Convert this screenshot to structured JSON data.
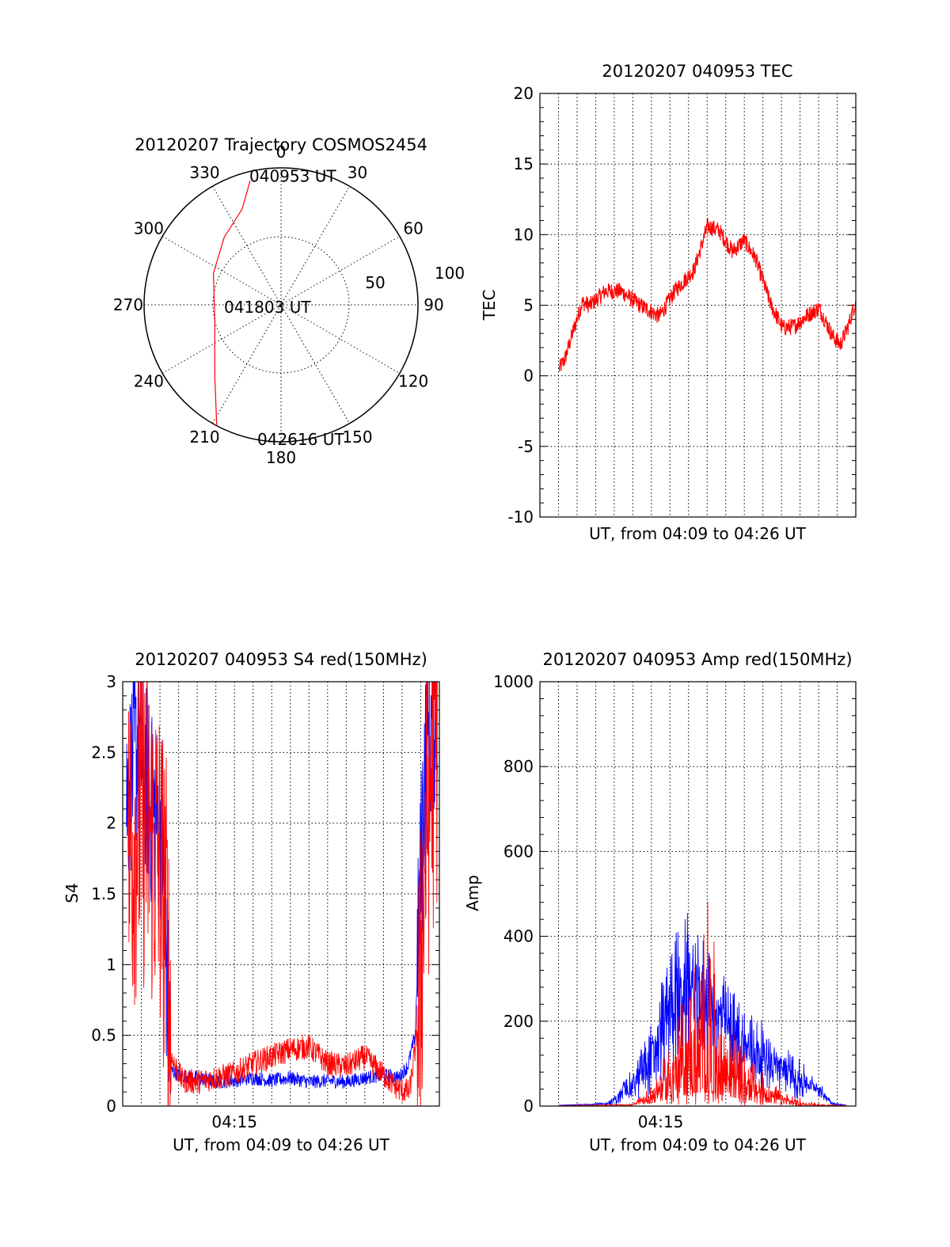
{
  "colors": {
    "red": "#ff0000",
    "blue": "#0000ff",
    "axis": "#000000"
  },
  "chart_data": [
    {
      "type": "polar",
      "title": "20120207 Trajectory COSMOS2454",
      "azimuth_labels": [
        "0",
        "30",
        "60",
        "90",
        "120",
        "150",
        "180",
        "210",
        "240",
        "270",
        "300",
        "330"
      ],
      "radial_labels": [
        "50",
        "100"
      ],
      "radial_range": [
        0,
        100
      ],
      "grid": true,
      "trajectory": {
        "color": "#ff0000",
        "points": [
          {
            "azimuth": 346,
            "zenith": 84
          },
          {
            "azimuth": 338,
            "zenith": 68
          },
          {
            "azimuth": 320,
            "zenith": 58
          },
          {
            "azimuth": 295,
            "zenith": 49
          },
          {
            "azimuth": 274,
            "zenith": 44
          },
          {
            "azimuth": 255,
            "zenith": 45
          },
          {
            "azimuth": 237,
            "zenith": 52
          },
          {
            "azimuth": 222,
            "zenith": 65
          },
          {
            "azimuth": 208,
            "zenith": 90
          }
        ],
        "labels": [
          {
            "text": "040953 UT",
            "azimuth": 0,
            "zenith": 83
          },
          {
            "text": "041803 UT",
            "azimuth": 0,
            "zenith": 0
          },
          {
            "text": "042616 UT",
            "azimuth": 180,
            "zenith": 90
          }
        ]
      }
    },
    {
      "type": "line",
      "title": "20120207 040953 TEC",
      "ylabel": "TEC",
      "xlabel": "UT, from 04:09 to 04:26 UT",
      "ylim": [
        -10,
        20
      ],
      "yticks": [
        "-10",
        "-5",
        "0",
        "5",
        "10",
        "15",
        "20"
      ],
      "xlim_minutes": [
        0,
        16.4
      ],
      "xticks": [],
      "grid": true,
      "series": [
        {
          "color": "#ff0000",
          "noise": 0.6,
          "x": [
            1.0,
            1.3,
            1.8,
            2.2,
            2.6,
            3.4,
            4.2,
            5.2,
            6.2,
            7.0,
            8.0,
            8.7,
            9.3,
            10.0,
            10.6,
            11.2,
            12.0,
            12.6,
            13.2,
            13.9,
            14.5,
            15.2,
            15.6,
            16.0,
            16.4
          ],
          "y": [
            0.5,
            1.2,
            3.5,
            5.2,
            5.0,
            6.0,
            6.0,
            5.0,
            4.2,
            6.0,
            7.5,
            10.6,
            10.3,
            8.8,
            9.6,
            8.3,
            5.0,
            3.4,
            3.5,
            4.3,
            4.8,
            2.8,
            2.2,
            3.5,
            5.3
          ]
        }
      ]
    },
    {
      "type": "line",
      "title": "20120207 040953 S4 red(150MHz)",
      "ylabel": "S4",
      "xlabel": "UT, from 04:09 to 04:26 UT",
      "ylim": [
        0,
        3
      ],
      "yticks": [
        "0",
        "0.5",
        "1",
        "1.5",
        "2",
        "2.5",
        "3"
      ],
      "xlim_minutes": [
        0,
        17.0
      ],
      "xticks": [
        {
          "label": "04:15",
          "x": 6.0
        }
      ],
      "grid": true,
      "series": [
        {
          "name": "",
          "color": "#0000ff",
          "noise": 0.05,
          "x": [
            0.2,
            0.9,
            1.5,
            2.1,
            2.4,
            2.6,
            3.0,
            4.0,
            5.0,
            6.0,
            7.0,
            8.0,
            9.0,
            10.0,
            11.0,
            12.0,
            13.0,
            14.0,
            14.8,
            15.3,
            15.7,
            16.2,
            16.9
          ],
          "y": [
            2.2,
            2.6,
            2.1,
            2.0,
            0.8,
            0.25,
            0.22,
            0.2,
            0.17,
            0.18,
            0.2,
            0.18,
            0.2,
            0.17,
            0.18,
            0.17,
            0.2,
            0.22,
            0.2,
            0.28,
            0.5,
            2.4,
            2.9
          ]
        },
        {
          "name": "",
          "color": "#ff0000",
          "noise": 0.09,
          "x": [
            0.3,
            1.0,
            1.8,
            2.3,
            2.6,
            3.2,
            4.0,
            5.0,
            6.0,
            7.0,
            8.0,
            9.0,
            10.0,
            11.0,
            12.0,
            13.0,
            14.0,
            14.8,
            15.4,
            15.9,
            16.3,
            16.9
          ],
          "y": [
            1.8,
            2.1,
            1.8,
            1.4,
            0.35,
            0.18,
            0.17,
            0.2,
            0.23,
            0.3,
            0.35,
            0.4,
            0.42,
            0.3,
            0.28,
            0.35,
            0.22,
            0.12,
            0.1,
            0.6,
            2.0,
            2.7
          ]
        }
      ]
    },
    {
      "type": "line",
      "title": "20120207 040953 Amp red(150MHz)",
      "ylabel": "Amp",
      "xlabel": "UT, from 04:09 to 04:26 UT",
      "ylim": [
        0,
        1000
      ],
      "yticks": [
        "0",
        "200",
        "400",
        "600",
        "800",
        "1000"
      ],
      "xlim_minutes": [
        0,
        17.0
      ],
      "xticks": [
        {
          "label": "04:15",
          "x": 6.5
        }
      ],
      "grid": true,
      "series": [
        {
          "name": "",
          "color": "#0000ff",
          "noise": 45,
          "x": [
            1.0,
            3.5,
            4.0,
            5.0,
            6.0,
            7.0,
            8.0,
            9.0,
            10.0,
            11.0,
            12.0,
            13.0,
            14.0,
            15.0,
            15.8,
            16.5
          ],
          "y": [
            2,
            5,
            15,
            50,
            110,
            230,
            280,
            250,
            190,
            140,
            120,
            90,
            60,
            40,
            5,
            2
          ],
          "max": [
            2,
            8,
            30,
            90,
            200,
            400,
            460,
            400,
            300,
            240,
            200,
            150,
            110,
            60,
            10,
            2
          ]
        },
        {
          "name": "",
          "color": "#ff0000",
          "noise": 30,
          "x": [
            1.0,
            5.0,
            6.0,
            7.0,
            8.0,
            9.0,
            10.0,
            11.0,
            12.0,
            13.0,
            14.0,
            15.0,
            16.5
          ],
          "y": [
            1,
            3,
            20,
            60,
            100,
            110,
            80,
            50,
            30,
            15,
            5,
            2,
            1
          ],
          "max": [
            1,
            5,
            50,
            150,
            300,
            500,
            220,
            130,
            80,
            40,
            20,
            5,
            1
          ]
        }
      ]
    }
  ]
}
